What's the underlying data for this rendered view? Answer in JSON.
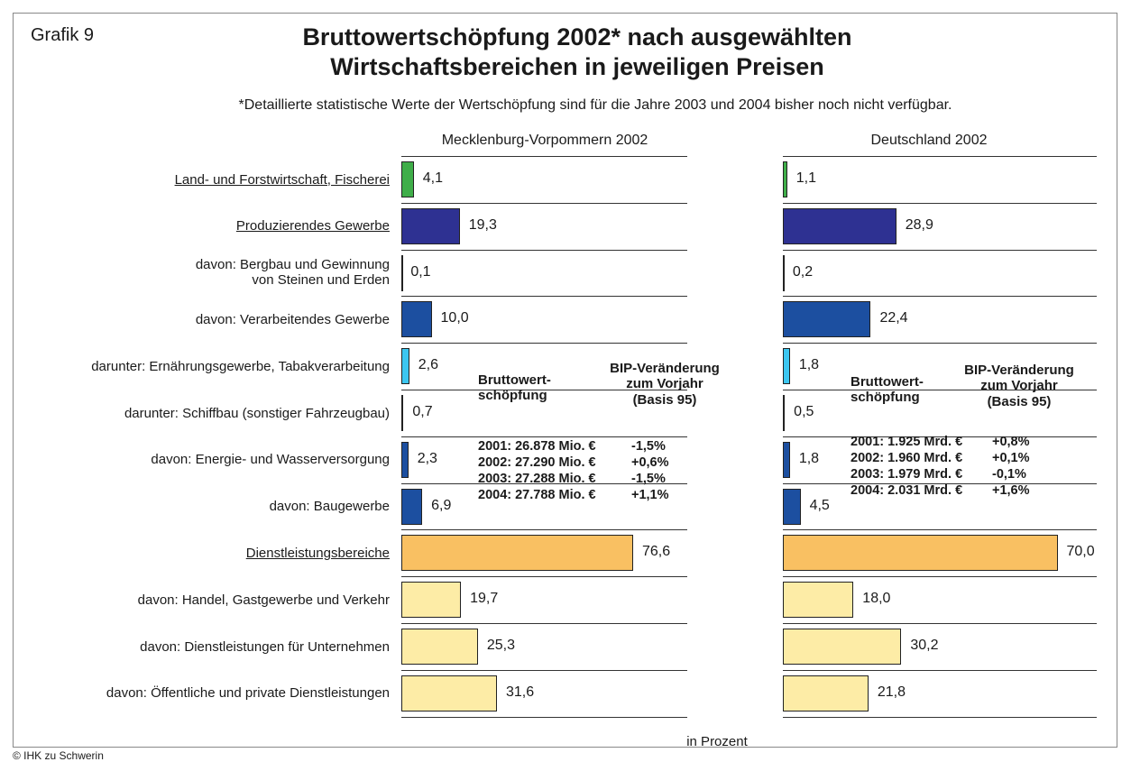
{
  "label": "Grafik 9",
  "title": [
    "Bruttowertschöpfung 2002* nach ausgewählten",
    "Wirtschaftsbereichen in jeweiligen Preisen"
  ],
  "subtitle": "*Detaillierte statistische Werte der Wertschöpfung sind für die Jahre 2003 und 2004 bisher noch nicht verfügbar.",
  "categories": [
    "Land- und Forstwirtschaft, Fischerei",
    "Produzierendes Gewerbe",
    "davon: Bergbau und Gewinnung\nvon Steinen und Erden",
    "davon: Verarbeitendes Gewerbe",
    "darunter: Ernährungsgewerbe, Tabakverarbeitung",
    "darunter: Schiffbau (sonstiger Fahrzeugbau)",
    "davon: Energie- und Wasserversorgung",
    "davon: Baugewerbe",
    "Dienstleistungsbereiche",
    "davon: Handel, Gastgewerbe und Verkehr",
    "davon: Dienstleistungen für Unternehmen",
    "davon: Öffentliche und private Dienstleistungen"
  ],
  "underline": [
    0,
    1,
    8
  ],
  "colors": [
    "#3fae49",
    "#2e3192",
    "#1c4fa0",
    "#1c4fa0",
    "#3cc6f0",
    "#1c4fa0",
    "#1c4fa0",
    "#1c4fa0",
    "#f9c062",
    "#fdeca6",
    "#fdeca6",
    "#fdeca6"
  ],
  "chart_data": [
    {
      "type": "bar",
      "orientation": "horizontal",
      "title": "Mecklenburg-Vorpommern 2002",
      "values": [
        4.1,
        19.3,
        0.1,
        10.0,
        2.6,
        0.7,
        2.3,
        6.9,
        76.6,
        19.7,
        25.3,
        31.6
      ],
      "value_labels": [
        "4,1",
        "19,3",
        "0,1",
        "10,0",
        "2,6",
        "0,7",
        "2,3",
        "6,9",
        "76,6",
        "19,7",
        "25,3",
        "31,6"
      ],
      "xlim": [
        0,
        94.5
      ],
      "stats": {
        "heading": "Bruttowert-\nschöpfung",
        "change_heading": "BIP-Veränderung\nzum Vorjahr\n(Basis 95)",
        "rows": [
          [
            "2001: 26.878 Mio. €",
            "-1,5%"
          ],
          [
            "2002: 27.290 Mio. €",
            "+0,6%"
          ],
          [
            "2003: 27.288 Mio. €",
            "-1,5%"
          ],
          [
            "2004: 27.788 Mio. €",
            "+1,1%"
          ]
        ]
      }
    },
    {
      "type": "bar",
      "orientation": "horizontal",
      "title": "Deutschland 2002",
      "values": [
        1.1,
        28.9,
        0.2,
        22.4,
        1.8,
        0.5,
        1.8,
        4.5,
        70.0,
        18.0,
        30.2,
        21.8
      ],
      "value_labels": [
        "1,1",
        "28,9",
        "0,2",
        "22,4",
        "1,8",
        "0,5",
        "1,8",
        "4,5",
        "70,0",
        "18,0",
        "30,2",
        "21,8"
      ],
      "xlim": [
        0,
        80
      ],
      "stats": {
        "heading": "Bruttowert-\nschöpfung",
        "change_heading": "BIP-Veränderung\nzum Vorjahr\n(Basis 95)",
        "rows": [
          [
            "2001: 1.925 Mrd. €",
            "+0,8%"
          ],
          [
            "2002: 1.960 Mrd. €",
            "+0,1%"
          ],
          [
            "2003: 1.979 Mrd. €",
            "-0,1%"
          ],
          [
            "2004: 2.031 Mrd. €",
            "+1,6%"
          ]
        ]
      }
    }
  ],
  "unit_note": "in Prozent",
  "source": "© IHK zu Schwerin"
}
